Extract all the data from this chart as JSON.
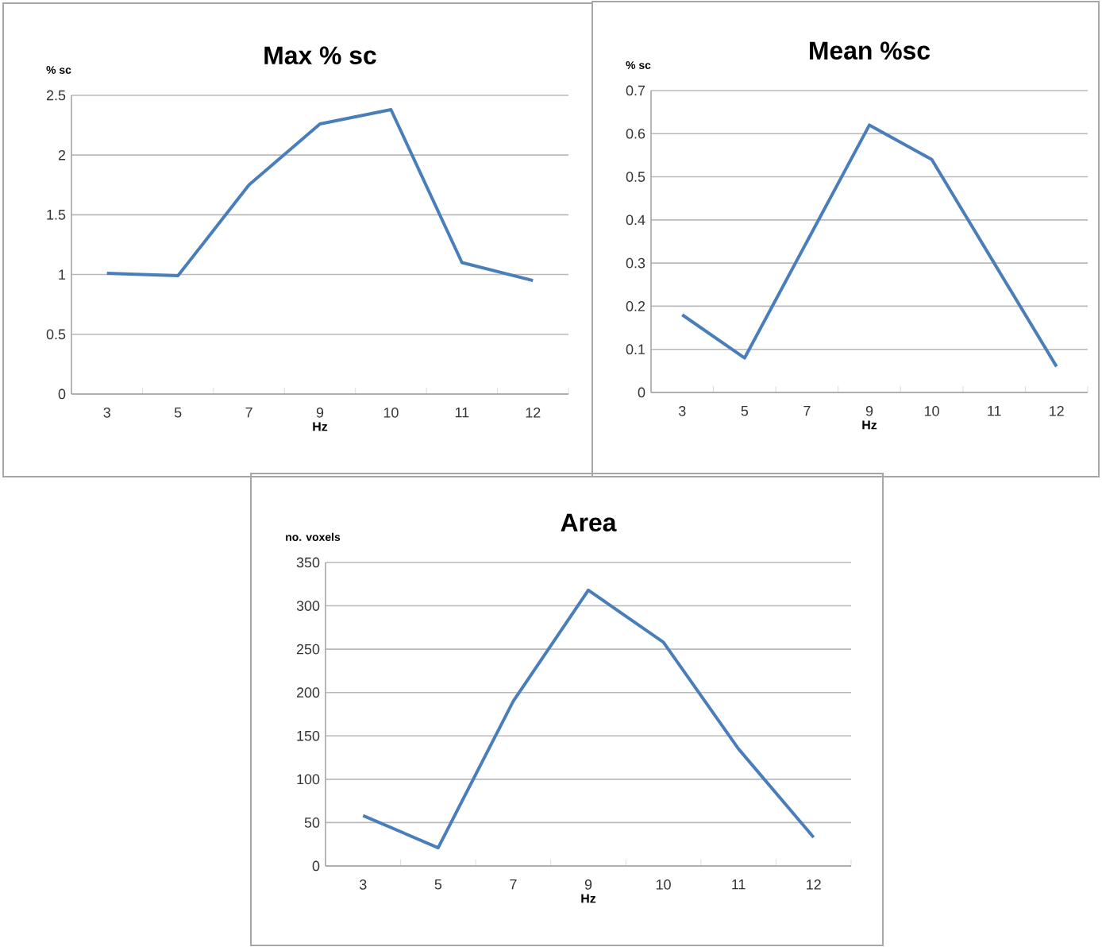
{
  "chart_data": [
    {
      "type": "line",
      "title": "Max % sc",
      "xlabel": "Hz",
      "ylabel": "% sc",
      "categories": [
        "3",
        "5",
        "7",
        "9",
        "10",
        "11",
        "12"
      ],
      "values": [
        1.01,
        0.99,
        1.75,
        2.26,
        2.38,
        1.1,
        0.95
      ],
      "color": "#4a7ebb",
      "ylim": [
        0,
        2.5
      ],
      "yticks": [
        0,
        0.5,
        1,
        1.5,
        2,
        2.5
      ],
      "grid": "y"
    },
    {
      "type": "line",
      "title": "Mean %sc",
      "xlabel": "Hz",
      "ylabel": "% sc",
      "categories": [
        "3",
        "5",
        "7",
        "9",
        "10",
        "11",
        "12"
      ],
      "values": [
        0.18,
        0.08,
        0.35,
        0.62,
        0.54,
        0.3,
        0.06
      ],
      "color": "#4a7ebb",
      "ylim": [
        0,
        0.7
      ],
      "yticks": [
        0,
        0.1,
        0.2,
        0.3,
        0.4,
        0.5,
        0.6,
        0.7
      ],
      "grid": "y"
    },
    {
      "type": "line",
      "title": "Area",
      "xlabel": "Hz",
      "ylabel": "no. voxels",
      "categories": [
        "3",
        "5",
        "7",
        "9",
        "10",
        "11",
        "12"
      ],
      "values": [
        58,
        21,
        190,
        318,
        258,
        135,
        33
      ],
      "color": "#4a7ebb",
      "ylim": [
        0,
        350
      ],
      "yticks": [
        0,
        50,
        100,
        150,
        200,
        250,
        300,
        350
      ],
      "grid": "y"
    }
  ]
}
